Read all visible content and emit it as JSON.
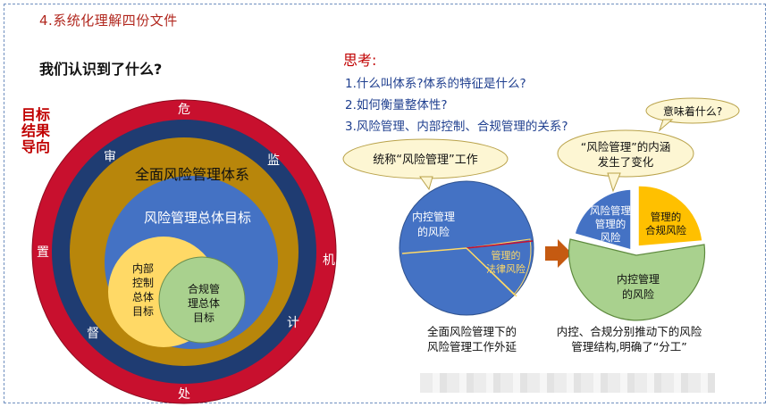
{
  "title": "4.系统化理解四份文件",
  "subtitle": "我们认识到了什么?",
  "side_goal": "目标结果导向",
  "rings": {
    "outer_chars": {
      "top": "危",
      "bottom": "处",
      "left": "置",
      "right": "机"
    },
    "navy_chars": {
      "top_left": "审",
      "top_right": "监",
      "bottom_left": "督",
      "bottom_right": "计"
    },
    "gold_label": "全面风险管理体系",
    "blue_label": "风险管理总体目标",
    "yellow_label": [
      "内部",
      "控制",
      "总体",
      "目标"
    ],
    "green_label": [
      "合规管",
      "理总体",
      "目标"
    ]
  },
  "thinking": {
    "title": "思考:",
    "questions": [
      "1.什么叫体系?体系的特征是什么?",
      "2.如何衡量整体性?",
      "3.风险管理、内部控制、合规管理的关系?"
    ]
  },
  "left_pie": {
    "bubble": "统称“风险管理”工作",
    "big_slice_label": [
      "内控管理",
      "的风险"
    ],
    "small_slice_label": [
      "管理的",
      "法律风险"
    ],
    "caption": [
      "全面风险管理下的",
      "风险管理工作外延"
    ]
  },
  "right_pie": {
    "small_bubble": "意味着什么?",
    "bubble": [
      "“风险管理”的内涵",
      "发生了变化"
    ],
    "blue_slice_label": [
      "风险管理",
      "管理的",
      "风险"
    ],
    "yellow_slice_label": [
      "管理的",
      "合规风险"
    ],
    "green_slice_label": [
      "内控管理",
      "的风险"
    ],
    "caption": [
      "内控、合规分别推动下的风险",
      "管理结构,明确了“分工”"
    ]
  },
  "colors": {
    "red": "#c8102e",
    "navy": "#1f3c72",
    "gold": "#b8860b",
    "blue": "#4472c4",
    "yellow": "#ffd966",
    "green": "#a9d18e",
    "orange_arrow": "#c55a11",
    "bubble": "#fdf6d3"
  }
}
